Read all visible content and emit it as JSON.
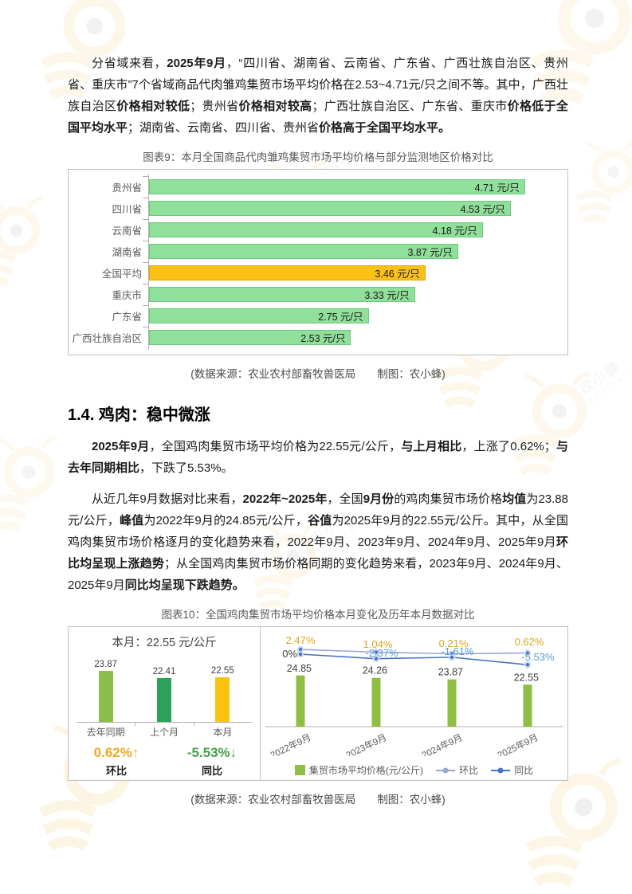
{
  "watermark": {
    "brand": "农小蜂",
    "sub": "BEEDATA"
  },
  "sections": {
    "para1": [
      {
        "t": "分省域来看，",
        "b": false
      },
      {
        "t": "2025年9月",
        "b": true
      },
      {
        "t": "，“四川省、湖南省、云南省、广东省、广西壮族自治区、贵州省、重庆市”7个省域商品代肉雏鸡集贸市场平均价格在2.53~4.71元/只之间不等。其中，广西壮族自治区",
        "b": false
      },
      {
        "t": "价格相对较低",
        "b": true
      },
      {
        "t": "；贵州省",
        "b": false
      },
      {
        "t": "价格相对较高",
        "b": true
      },
      {
        "t": "；广西壮族自治区、广东省、重庆市",
        "b": false
      },
      {
        "t": "价格低于全国平均水平",
        "b": true
      },
      {
        "t": "；湖南省、云南省、四川省、贵州省",
        "b": false
      },
      {
        "t": "价格高于全国平均水平。",
        "b": true
      }
    ],
    "heading": "1.4. 鸡肉：稳中微涨",
    "para2": [
      {
        "t": "2025年9月",
        "b": true
      },
      {
        "t": "，全国鸡肉集贸市场平均价格为22.55元/公斤，",
        "b": false
      },
      {
        "t": "与上月相比",
        "b": true
      },
      {
        "t": "，上涨了0.62%；",
        "b": false
      },
      {
        "t": "与去年同期相比",
        "b": true
      },
      {
        "t": "，下跌了5.53%。",
        "b": false
      }
    ],
    "para3": [
      {
        "t": "从近几年9月数据对比来看，",
        "b": false
      },
      {
        "t": "2022年~2025年",
        "b": true
      },
      {
        "t": "，全国",
        "b": false
      },
      {
        "t": "9月份",
        "b": true
      },
      {
        "t": "的鸡肉集贸市场价格",
        "b": false
      },
      {
        "t": "均值",
        "b": true
      },
      {
        "t": "为23.88元/公斤，",
        "b": false
      },
      {
        "t": "峰值",
        "b": true
      },
      {
        "t": "为2022年9月的24.85元/公斤，",
        "b": false
      },
      {
        "t": "谷值",
        "b": true
      },
      {
        "t": "为2025年9月的22.55元/公斤。其中，从全国鸡肉集贸市场价格逐月的变化趋势来看，2022年9月、2023年9月、2024年9月、2025年9月",
        "b": false
      },
      {
        "t": "环比均呈现上涨趋势",
        "b": true
      },
      {
        "t": "；从全国鸡肉集贸市场价格同期的变化趋势来看，2023年9月、2024年9月、2025年9月",
        "b": false
      },
      {
        "t": "同比均呈现下跌趋势。",
        "b": true
      }
    ]
  },
  "figure9": {
    "title": "图表9：本月全国商品代肉雏鸡集贸市场平均价格与部分监测地区价格对比",
    "caption": "(数据来源：农业农村部畜牧兽医局　　制图：农小蜂)"
  },
  "figure10": {
    "title": "图表10：全国鸡肉集贸市场平均价格本月变化及历年本月数据对比",
    "caption": "(数据来源：农业农村部畜牧兽医局　　制图：农小蜂)",
    "left": {
      "header": "本月：22.55 元/公斤",
      "bars": [
        {
          "label": "去年同期",
          "value": "23.87",
          "color": "#8cbe4b"
        },
        {
          "label": "上个月",
          "value": "22.41",
          "color": "#2ba45a"
        },
        {
          "label": "本月",
          "value": "22.55",
          "color": "#fbc311"
        }
      ],
      "footers": [
        {
          "value": "0.62%↑",
          "label": "环比",
          "color": "#efa829"
        },
        {
          "value": "-5.53%↓",
          "label": "同比",
          "color": "#43a047"
        }
      ]
    }
  },
  "chart_data": [
    {
      "id": "figure9",
      "type": "bar",
      "orientation": "horizontal",
      "title": "图表9：本月全国商品代肉雏鸡集贸市场平均价格与部分监测地区价格对比",
      "categories": [
        "贵州省",
        "四川省",
        "云南省",
        "湖南省",
        "全国平均",
        "重庆市",
        "广东省",
        "广西壮族自治区"
      ],
      "values": [
        4.71,
        4.53,
        4.18,
        3.87,
        3.46,
        3.33,
        2.75,
        2.53
      ],
      "unit": "元/只",
      "value_label_format": "{v} 元/只",
      "xlim": [
        0,
        5.12
      ],
      "bar_color": "#90df9a",
      "highlight_category": "全国平均",
      "highlight_color": "#fbc117",
      "grid": false
    },
    {
      "id": "figure10-left",
      "type": "bar",
      "title": "本月：22.55 元/公斤",
      "categories": [
        "去年同期",
        "上个月",
        "本月"
      ],
      "values": [
        23.87,
        22.41,
        22.55
      ],
      "unit": "元/公斤",
      "bar_colors": [
        "#8cbe4b",
        "#2ba45a",
        "#fbc311"
      ],
      "annotations": [
        {
          "text": "0.62%↑",
          "label": "环比",
          "color": "#efa829"
        },
        {
          "text": "-5.53%↓",
          "label": "同比",
          "color": "#43a047"
        }
      ]
    },
    {
      "id": "figure10-right",
      "type": "bar+line",
      "categories": [
        "2022年9月",
        "2023年9月",
        "2024年9月",
        "2025年9月"
      ],
      "series": [
        {
          "name": "集贸市场平均价格(元/公斤)",
          "type": "bar",
          "values": [
            24.85,
            24.26,
            23.87,
            22.55
          ],
          "color": "#8fbe45"
        },
        {
          "name": "环比",
          "type": "line",
          "values": [
            2.47,
            1.04,
            0.21,
            0.62
          ],
          "labels": [
            "2.47%",
            "1.04%",
            "0.21%",
            "0.62%"
          ],
          "color": "#98a6d4",
          "label_color": "#d9a61d"
        },
        {
          "name": "同比",
          "type": "line",
          "values": [
            0,
            -2.37,
            -1.61,
            -5.53
          ],
          "labels": [
            "0%",
            "-2.37%",
            "-1.61%",
            "-5.53%"
          ],
          "color": "#4472c4",
          "label_color": "#5b9bd5",
          "first_label_color": "#404040"
        }
      ],
      "legend_position": "bottom",
      "grid": false
    }
  ]
}
